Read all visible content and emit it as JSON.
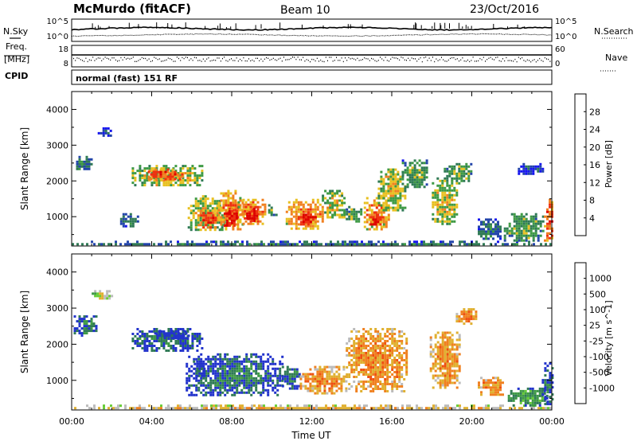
{
  "header": {
    "station": "McMurdo (fitACF)",
    "beam": "Beam 10",
    "date": "23/Oct/2016"
  },
  "left_labels": {
    "nsky": "N.Sky",
    "freq_line1": "Freq.",
    "freq_line2": "[MHz]",
    "cpid": "CPID"
  },
  "right_labels": {
    "nsearch": "N.Search",
    "nave": "Nave"
  },
  "ticks": {
    "noise_top": "10^5",
    "noise_bottom": "10^0",
    "freq_top": "18",
    "freq_bottom": "8",
    "nave_top": "60",
    "nave_bottom": "0"
  },
  "cpid_text": "normal (fast) 151 RF",
  "chart_data": [
    {
      "type": "heatmap",
      "name": "power-panel",
      "ylabel": "Slant Range [km]",
      "xlabel": "Time UT",
      "x_ticks": [
        "00:00",
        "04:00",
        "08:00",
        "12:00",
        "16:00",
        "20:00",
        "00:00"
      ],
      "x_hours": [
        0,
        4,
        8,
        12,
        16,
        20,
        24
      ],
      "xlim": [
        0,
        24
      ],
      "ylim": [
        180,
        4500
      ],
      "y_ticks": [
        1000,
        2000,
        3000,
        4000
      ],
      "colorbar": {
        "label": "Power [dB]",
        "tick_labels": [
          "4",
          "8",
          "12",
          "16",
          "20",
          "24",
          "28"
        ],
        "colors": [
          "#1515ee",
          "#2244aa",
          "#2f7a55",
          "#3e9a44",
          "#e8c020",
          "#f08020",
          "#ee3010",
          "#dd0000"
        ]
      },
      "echo_regions": [
        {
          "t0": 0.0,
          "t1": 24.0,
          "r0": 200,
          "r1": 330,
          "level": 2
        },
        {
          "t0": 1.3,
          "t1": 2.0,
          "r0": 3250,
          "r1": 3500,
          "level": 1
        },
        {
          "t0": 0.1,
          "t1": 1.0,
          "r0": 2300,
          "r1": 2700,
          "level": 2
        },
        {
          "t0": 3.0,
          "t1": 6.5,
          "r0": 1850,
          "r1": 2450,
          "level": 4
        },
        {
          "t0": 3.8,
          "t1": 5.5,
          "r0": 2050,
          "r1": 2350,
          "level": 6
        },
        {
          "t0": 2.3,
          "t1": 3.3,
          "r0": 750,
          "r1": 1100,
          "level": 2
        },
        {
          "t0": 5.8,
          "t1": 7.6,
          "r0": 600,
          "r1": 1600,
          "level": 4
        },
        {
          "t0": 6.3,
          "t1": 7.3,
          "r0": 700,
          "r1": 1200,
          "level": 6
        },
        {
          "t0": 7.3,
          "t1": 8.6,
          "r0": 650,
          "r1": 1750,
          "level": 5
        },
        {
          "t0": 7.6,
          "t1": 8.3,
          "r0": 700,
          "r1": 1250,
          "level": 7
        },
        {
          "t0": 8.3,
          "t1": 9.7,
          "r0": 800,
          "r1": 1500,
          "level": 5
        },
        {
          "t0": 8.6,
          "t1": 9.3,
          "r0": 900,
          "r1": 1250,
          "level": 7
        },
        {
          "t0": 9.7,
          "t1": 10.2,
          "r0": 1050,
          "r1": 1350,
          "level": 3
        },
        {
          "t0": 10.7,
          "t1": 12.6,
          "r0": 650,
          "r1": 1500,
          "level": 5
        },
        {
          "t0": 11.3,
          "t1": 12.2,
          "r0": 750,
          "r1": 1150,
          "level": 7
        },
        {
          "t0": 12.5,
          "t1": 13.6,
          "r0": 1000,
          "r1": 1750,
          "level": 4
        },
        {
          "t0": 13.7,
          "t1": 14.5,
          "r0": 850,
          "r1": 1300,
          "level": 3
        },
        {
          "t0": 14.6,
          "t1": 15.9,
          "r0": 650,
          "r1": 1550,
          "level": 5
        },
        {
          "t0": 14.9,
          "t1": 15.6,
          "r0": 750,
          "r1": 1150,
          "level": 7
        },
        {
          "t0": 15.3,
          "t1": 16.7,
          "r0": 1200,
          "r1": 2350,
          "level": 4
        },
        {
          "t0": 16.5,
          "t1": 17.8,
          "r0": 1800,
          "r1": 2600,
          "level": 3
        },
        {
          "t0": 18.0,
          "t1": 19.2,
          "r0": 800,
          "r1": 2100,
          "level": 4
        },
        {
          "t0": 18.6,
          "t1": 20.0,
          "r0": 1950,
          "r1": 2500,
          "level": 3
        },
        {
          "t0": 20.3,
          "t1": 21.4,
          "r0": 350,
          "r1": 950,
          "level": 2
        },
        {
          "t0": 21.6,
          "t1": 23.6,
          "r0": 300,
          "r1": 1100,
          "level": 3
        },
        {
          "t0": 22.3,
          "t1": 23.6,
          "r0": 2200,
          "r1": 2500,
          "level": 1
        },
        {
          "t0": 23.6,
          "t1": 24.0,
          "r0": 350,
          "r1": 1500,
          "level": 6
        }
      ]
    },
    {
      "type": "heatmap",
      "name": "velocity-panel",
      "ylabel": "Slant Range [km]",
      "xlabel": "Time UT",
      "x_ticks": [
        "00:00",
        "04:00",
        "08:00",
        "12:00",
        "16:00",
        "20:00",
        "00:00"
      ],
      "x_hours": [
        0,
        4,
        8,
        12,
        16,
        20,
        24
      ],
      "xlim": [
        0,
        24
      ],
      "ylim": [
        180,
        4500
      ],
      "y_ticks": [
        1000,
        2000,
        3000,
        4000
      ],
      "colorbar": {
        "label": "Velocity [m s^-1]",
        "tick_labels": [
          "1000",
          "500",
          "100",
          "25",
          "-25",
          "-100",
          "-500",
          "-1000"
        ],
        "colors": [
          "#2233cc",
          "#2f7a55",
          "#3e9a44",
          "#66cc33",
          "#bbbbbb",
          "#e0b030",
          "#f08020",
          "#ee5010",
          "#ee1010"
        ]
      },
      "echo_regions": [
        {
          "t0": 0.0,
          "t1": 24.0,
          "r0": 200,
          "r1": 330,
          "level": 5
        },
        {
          "t0": 1.0,
          "t1": 2.0,
          "r0": 3250,
          "r1": 3500,
          "level": 4
        },
        {
          "t0": 0.1,
          "t1": 1.2,
          "r0": 2250,
          "r1": 2800,
          "level": 1
        },
        {
          "t0": 3.0,
          "t1": 6.5,
          "r0": 1850,
          "r1": 2450,
          "level": 1
        },
        {
          "t0": 4.0,
          "t1": 5.8,
          "r0": 2150,
          "r1": 2400,
          "level": 0
        },
        {
          "t0": 5.7,
          "t1": 10.5,
          "r0": 600,
          "r1": 1750,
          "level": 1
        },
        {
          "t0": 6.1,
          "t1": 6.6,
          "r0": 1100,
          "r1": 1550,
          "level": 0
        },
        {
          "t0": 10.5,
          "t1": 11.4,
          "r0": 800,
          "r1": 1400,
          "level": 1
        },
        {
          "t0": 11.4,
          "t1": 13.7,
          "r0": 650,
          "r1": 1400,
          "level": 6
        },
        {
          "t0": 13.7,
          "t1": 16.8,
          "r0": 700,
          "r1": 2450,
          "level": 6
        },
        {
          "t0": 17.9,
          "t1": 19.4,
          "r0": 800,
          "r1": 2350,
          "level": 6
        },
        {
          "t0": 19.2,
          "t1": 20.2,
          "r0": 2600,
          "r1": 3000,
          "level": 6
        },
        {
          "t0": 20.3,
          "t1": 21.6,
          "r0": 600,
          "r1": 1100,
          "level": 6
        },
        {
          "t0": 21.8,
          "t1": 23.8,
          "r0": 300,
          "r1": 800,
          "level": 2
        },
        {
          "t0": 23.5,
          "t1": 24.0,
          "r0": 350,
          "r1": 1500,
          "level": 1
        }
      ]
    }
  ]
}
